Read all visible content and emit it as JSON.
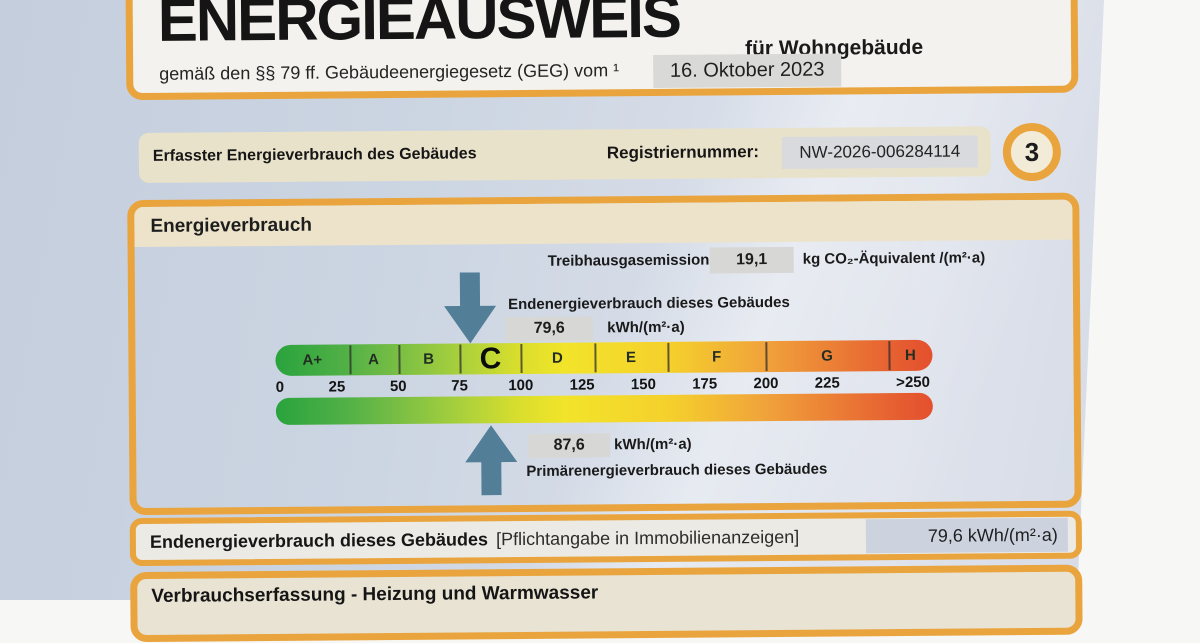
{
  "document": {
    "title": "ENERGIEAUSWEIS",
    "subtitle": "für Wohngebäude",
    "law_line": "gemäß den §§ 79 ff. Gebäudeenergiegesetz (GEG) vom ¹",
    "issue_date": "16. Oktober 2023"
  },
  "registry": {
    "section_label": "Erfasster Energieverbrauch des Gebäudes",
    "reg_label": "Registriernummer:",
    "reg_number": "NW-2026-006284114",
    "page_number": "3"
  },
  "consumption": {
    "section_title": "Energieverbrauch",
    "ghg_label": "Treibhausgasemissionen",
    "ghg_value": "19,1",
    "ghg_unit": "kg CO₂-Äquivalent /(m²·a)",
    "end_energy_label": "Endenergieverbrauch dieses Gebäudes",
    "end_energy_value": "79,6",
    "end_energy_unit": "kWh/(m²·a)",
    "primary_label": "Primärenergieverbrauch dieses Gebäudes",
    "primary_value": "87,6",
    "primary_unit": "kWh/(m²·a)"
  },
  "scale": {
    "axis_max": 268,
    "current_class": "C",
    "end_energy_value": 79.6,
    "primary_energy_value": 87.6,
    "classes": [
      {
        "label": "A+",
        "from": 0,
        "to": 30
      },
      {
        "label": "A",
        "from": 30,
        "to": 50
      },
      {
        "label": "B",
        "from": 50,
        "to": 75
      },
      {
        "label": "C",
        "from": 75,
        "to": 100
      },
      {
        "label": "D",
        "from": 100,
        "to": 130
      },
      {
        "label": "E",
        "from": 130,
        "to": 160
      },
      {
        "label": "F",
        "from": 160,
        "to": 200
      },
      {
        "label": "G",
        "from": 200,
        "to": 250
      },
      {
        "label": "H",
        "from": 250,
        "to": 268
      }
    ],
    "ticks": [
      {
        "label": "0",
        "value": 0
      },
      {
        "label": "25",
        "value": 25
      },
      {
        "label": "50",
        "value": 50
      },
      {
        "label": "75",
        "value": 75
      },
      {
        "label": "100",
        "value": 100
      },
      {
        "label": "125",
        "value": 125
      },
      {
        "label": "150",
        "value": 150
      },
      {
        "label": "175",
        "value": 175
      },
      {
        "label": "200",
        "value": 200
      },
      {
        "label": "225",
        "value": 225
      },
      {
        "label": ">250",
        "value": 260
      }
    ]
  },
  "footer": {
    "mandatory_label": "Endenergieverbrauch dieses Gebäudes",
    "mandatory_note": "[Pflichtangabe in Immobilienanzeigen]",
    "mandatory_value": "79,6 kWh/(m²·a)",
    "next_section_title": "Verbrauchserfassung - Heizung und Warmwasser"
  },
  "colors": {
    "accent_orange": "#e9a43d",
    "arrow_blue": "#527e97",
    "paper_blue": "#ccd5e2",
    "bar_beige": "#e9e2ca",
    "chip_gray": "#d7d7d6",
    "value_box_blue": "#ccd3df"
  }
}
